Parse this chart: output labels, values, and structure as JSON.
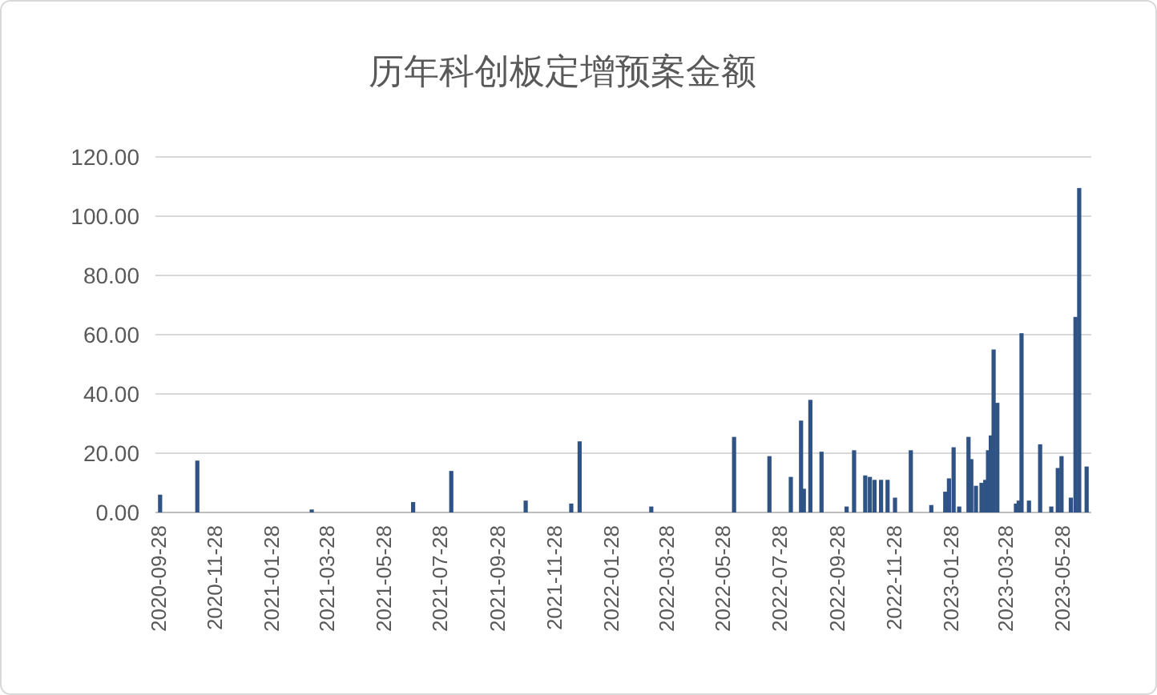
{
  "chart_data": {
    "type": "bar",
    "title": "历年科创板定增预案金额",
    "x": [
      "2020-09-30",
      "2020-11-09",
      "2021-03-12",
      "2021-06-29",
      "2021-08-09",
      "2021-10-28",
      "2021-12-16",
      "2021-12-25",
      "2022-03-12",
      "2022-06-09",
      "2022-07-17",
      "2022-08-09",
      "2022-08-20",
      "2022-08-23",
      "2022-08-30",
      "2022-09-11",
      "2022-10-08",
      "2022-10-16",
      "2022-10-28",
      "2022-11-02",
      "2022-11-07",
      "2022-11-14",
      "2022-11-21",
      "2022-11-29",
      "2022-12-16",
      "2023-01-07",
      "2023-01-22",
      "2023-01-26",
      "2023-01-31",
      "2023-02-06",
      "2023-02-16",
      "2023-02-19",
      "2023-02-24",
      "2023-03-02",
      "2023-03-06",
      "2023-03-09",
      "2023-03-12",
      "2023-03-15",
      "2023-03-19",
      "2023-04-08",
      "2023-04-11",
      "2023-04-14",
      "2023-04-22",
      "2023-05-04",
      "2023-05-16",
      "2023-05-23",
      "2023-05-27",
      "2023-06-06",
      "2023-06-11",
      "2023-06-15",
      "2023-06-23"
    ],
    "values": [
      6,
      17.5,
      1,
      3.5,
      14,
      4,
      3,
      24,
      2,
      25.5,
      19,
      12,
      31,
      8,
      38,
      20.5,
      2,
      21,
      12.5,
      12,
      11,
      11,
      11,
      5,
      21,
      2.5,
      7,
      11.5,
      22,
      2,
      25.5,
      18,
      9,
      10,
      11,
      21,
      26,
      55,
      37,
      3,
      4,
      60.5,
      4,
      23,
      2,
      15,
      19,
      5,
      66,
      109.5,
      15.5
    ],
    "color": "#2e5384",
    "xlim": [
      "2020-09-25",
      "2023-06-28"
    ],
    "xticks": [
      "2020-09-28",
      "2020-11-28",
      "2021-01-28",
      "2021-03-28",
      "2021-05-28",
      "2021-07-28",
      "2021-09-28",
      "2021-11-28",
      "2022-01-28",
      "2022-03-28",
      "2022-05-28",
      "2022-07-28",
      "2022-09-28",
      "2022-11-28",
      "2023-01-28",
      "2023-03-28",
      "2023-05-28"
    ],
    "ylim": [
      0,
      120
    ],
    "yticks": [
      {
        "value": 0,
        "label": "0.00"
      },
      {
        "value": 20,
        "label": "20.00"
      },
      {
        "value": 40,
        "label": "40.00"
      },
      {
        "value": 60,
        "label": "60.00"
      },
      {
        "value": 80,
        "label": "80.00"
      },
      {
        "value": 100,
        "label": "100.00"
      },
      {
        "value": 120,
        "label": "120.00"
      }
    ],
    "grid": "y"
  }
}
